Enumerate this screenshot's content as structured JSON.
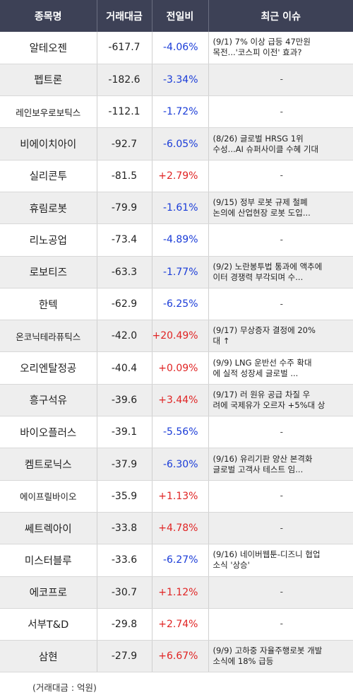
{
  "headers": [
    "종목명",
    "거래대금",
    "전일비",
    "최근 이슈"
  ],
  "rows": [
    {
      "name": "알테오젠",
      "amount": "-617.7",
      "change": "-4.06%",
      "dir": "down",
      "news1": "(9/1) 7% 이상 급등 47만원",
      "news2": " 목전...'코스피 이전' 효과?"
    },
    {
      "name": "펩트론",
      "amount": "-182.6",
      "change": "-3.34%",
      "dir": "down",
      "news1": "-",
      "news2": ""
    },
    {
      "name": "레인보우로보틱스",
      "amount": "-112.1",
      "change": "-1.72%",
      "dir": "down",
      "news1": "-",
      "news2": ""
    },
    {
      "name": "비에이치아이",
      "amount": "-92.7",
      "change": "-6.05%",
      "dir": "down",
      "news1": "(8/26) 글로벌 HRSG 1위",
      "news2": "수성...AI 슈퍼사이클 수혜 기대"
    },
    {
      "name": "실리콘투",
      "amount": "-81.5",
      "change": "+2.79%",
      "dir": "up",
      "news1": "-",
      "news2": ""
    },
    {
      "name": "휴림로봇",
      "amount": "-79.9",
      "change": "-1.61%",
      "dir": "down",
      "news1": "(9/15) 정부 로봇 규제 철폐",
      "news2": "논의에 산업현장 로봇 도입..."
    },
    {
      "name": "리노공업",
      "amount": "-73.4",
      "change": "-4.89%",
      "dir": "down",
      "news1": "-",
      "news2": ""
    },
    {
      "name": "로보티즈",
      "amount": "-63.3",
      "change": "-1.77%",
      "dir": "down",
      "news1": "(9/2) 노란봉투법 통과에 액추에",
      "news2": "이터 경쟁력 부각되며 수..."
    },
    {
      "name": "한텍",
      "amount": "-62.9",
      "change": "-6.25%",
      "dir": "down",
      "news1": "-",
      "news2": ""
    },
    {
      "name": "온코닉테라퓨틱스",
      "amount": "-42.0",
      "change": "+20.49%",
      "dir": "up",
      "news1": "(9/17) 무상증자 결정에 20%",
      "news2": "대 ↑"
    },
    {
      "name": "오리엔탈정공",
      "amount": "-40.4",
      "change": "+0.09%",
      "dir": "up",
      "news1": "(9/9) LNG 운반선 수주 확대",
      "news2": "에 실적 성장세 글로벌 ..."
    },
    {
      "name": "흥구석유",
      "amount": "-39.6",
      "change": "+3.44%",
      "dir": "up",
      "news1": "(9/17) 러 원유 공급 차질 우",
      "news2": "려에 국제유가 오르자 +5%대 상"
    },
    {
      "name": "바이오플러스",
      "amount": "-39.1",
      "change": "-5.56%",
      "dir": "down",
      "news1": "-",
      "news2": ""
    },
    {
      "name": "켐트로닉스",
      "amount": "-37.9",
      "change": "-6.30%",
      "dir": "down",
      "news1": "(9/16) 유리기판 양산 본격화",
      "news2": "글로벌 고객사 테스트 임..."
    },
    {
      "name": "에이프릴바이오",
      "amount": "-35.9",
      "change": "+1.13%",
      "dir": "up",
      "news1": "-",
      "news2": ""
    },
    {
      "name": "쎄트렉아이",
      "amount": "-33.8",
      "change": "+4.78%",
      "dir": "up",
      "news1": "-",
      "news2": ""
    },
    {
      "name": "미스터블루",
      "amount": "-33.6",
      "change": "-6.27%",
      "dir": "down",
      "news1": "(9/16) 네이버웹툰-디즈니 협업",
      "news2": " 소식 '상승'"
    },
    {
      "name": "에코프로",
      "amount": "-30.7",
      "change": "+1.12%",
      "dir": "up",
      "news1": "-",
      "news2": ""
    },
    {
      "name": "서부T&D",
      "amount": "-29.8",
      "change": "+2.74%",
      "dir": "up",
      "news1": "-",
      "news2": ""
    },
    {
      "name": "삼현",
      "amount": "-27.9",
      "change": "+6.67%",
      "dir": "up",
      "news1": "(9/9) 고하중 자율주행로봇 개발",
      "news2": " 소식에 18% 급등"
    }
  ],
  "footnote": "(거래대금 : 억원)"
}
